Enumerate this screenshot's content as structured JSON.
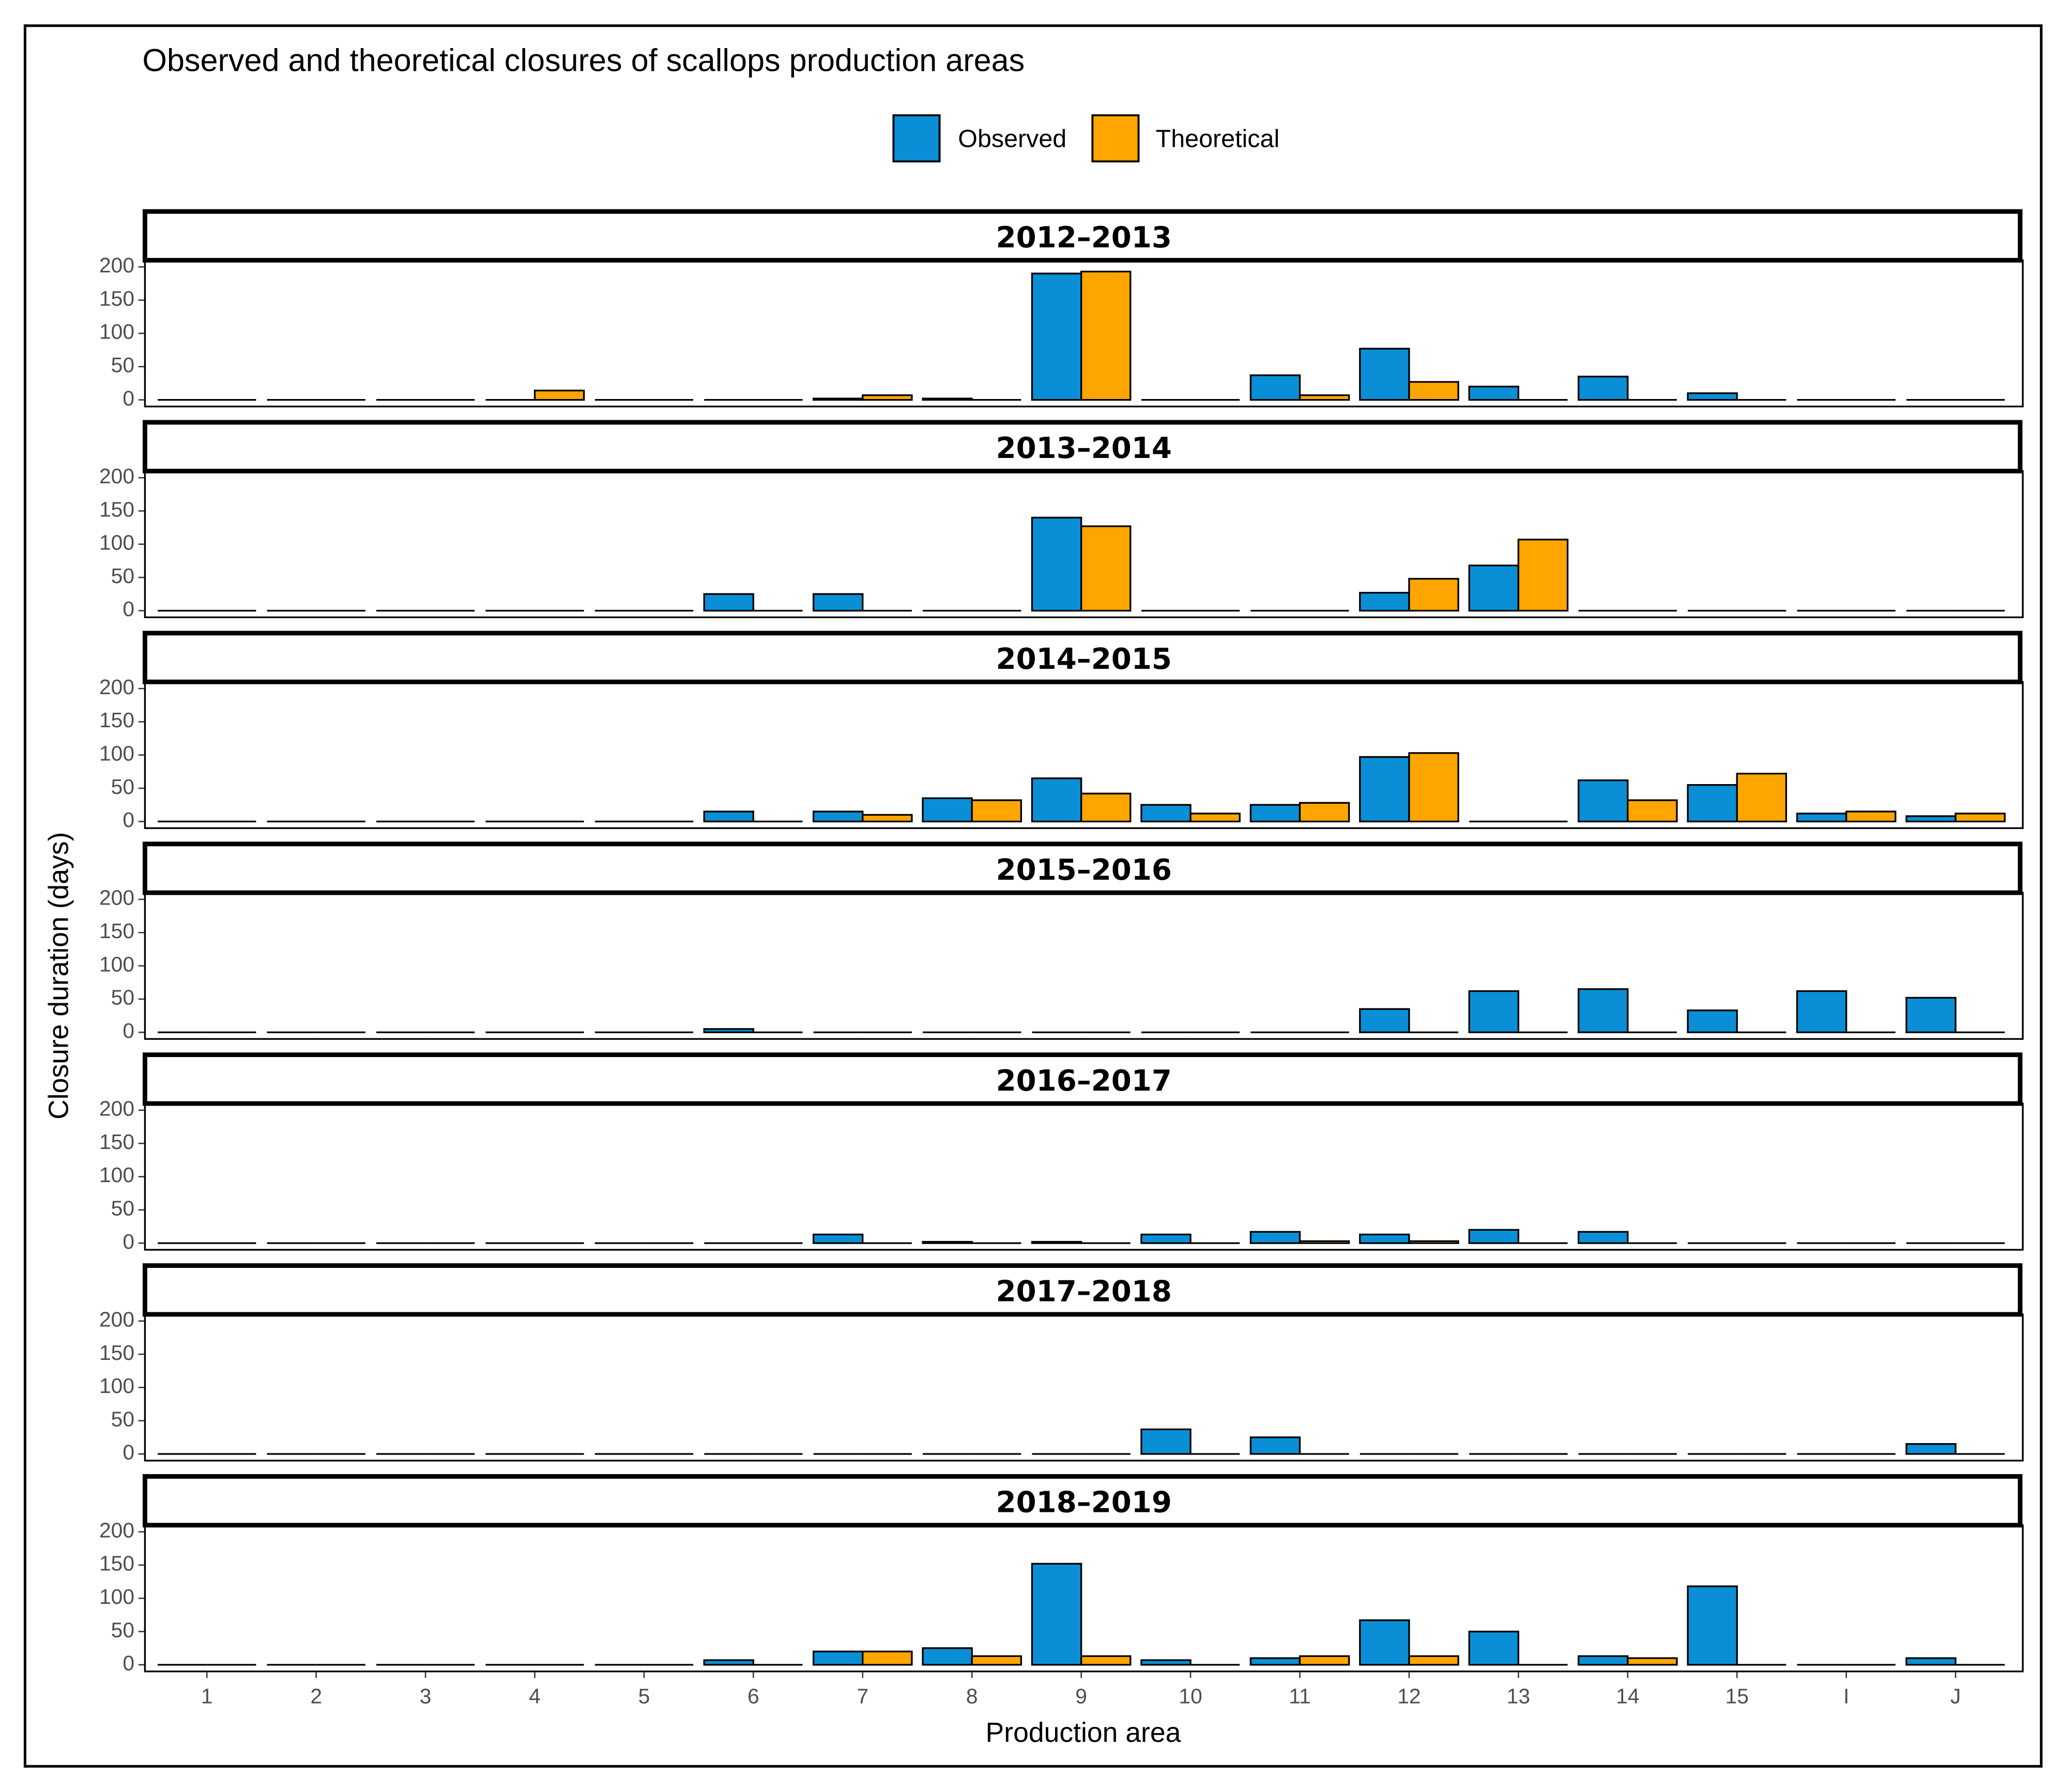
{
  "chart_data": {
    "type": "bar",
    "title": "Observed and theoretical closures of scallops production areas",
    "xlabel": "Production area",
    "ylabel": "Closure duration (days)",
    "categories": [
      "1",
      "2",
      "3",
      "4",
      "5",
      "6",
      "7",
      "8",
      "9",
      "10",
      "11",
      "12",
      "13",
      "14",
      "15",
      "I",
      "J"
    ],
    "series": [
      {
        "name": "Observed",
        "color": "#0a8fd6"
      },
      {
        "name": "Theoretical",
        "color": "#ffa500"
      }
    ],
    "legend": "top",
    "ylim": [
      -10,
      210
    ],
    "yticks": [
      0,
      50,
      100,
      150,
      200
    ],
    "panels": [
      {
        "title": "2012–2013",
        "series": [
          {
            "values": [
              0,
              0,
              0,
              0,
              0,
              0,
              2,
              2,
              190,
              0,
              37,
              77,
              20,
              35,
              10,
              0,
              0
            ]
          },
          {
            "values": [
              0,
              0,
              0,
              14,
              0,
              0,
              7,
              0,
              193,
              0,
              7,
              27,
              0,
              0,
              0,
              0,
              0
            ]
          }
        ]
      },
      {
        "title": "2013–2014",
        "series": [
          {
            "values": [
              0,
              0,
              0,
              0,
              0,
              25,
              25,
              0,
              140,
              0,
              0,
              27,
              68,
              0,
              0,
              0,
              0
            ]
          },
          {
            "values": [
              0,
              0,
              0,
              0,
              0,
              0,
              0,
              0,
              127,
              0,
              0,
              48,
              107,
              0,
              0,
              0,
              0
            ]
          }
        ]
      },
      {
        "title": "2014–2015",
        "series": [
          {
            "values": [
              0,
              0,
              0,
              0,
              0,
              15,
              15,
              35,
              65,
              25,
              25,
              97,
              0,
              62,
              55,
              12,
              8
            ]
          },
          {
            "values": [
              0,
              0,
              0,
              0,
              0,
              0,
              10,
              32,
              42,
              12,
              28,
              103,
              0,
              32,
              72,
              15,
              12
            ]
          }
        ]
      },
      {
        "title": "2015–2016",
        "series": [
          {
            "values": [
              0,
              0,
              0,
              0,
              0,
              5,
              0,
              0,
              0,
              0,
              0,
              35,
              62,
              65,
              33,
              62,
              52
            ]
          },
          {
            "values": [
              0,
              0,
              0,
              0,
              0,
              0,
              0,
              0,
              0,
              0,
              0,
              0,
              0,
              0,
              0,
              0,
              0
            ]
          }
        ]
      },
      {
        "title": "2016–2017",
        "series": [
          {
            "values": [
              0,
              0,
              0,
              0,
              0,
              0,
              13,
              2,
              2,
              13,
              17,
              13,
              20,
              17,
              0,
              0,
              0
            ]
          },
          {
            "values": [
              0,
              0,
              0,
              0,
              0,
              0,
              0,
              0,
              0,
              0,
              3,
              3,
              0,
              0,
              0,
              0,
              0
            ]
          }
        ]
      },
      {
        "title": "2017–2018",
        "series": [
          {
            "values": [
              0,
              0,
              0,
              0,
              0,
              0,
              0,
              0,
              0,
              37,
              25,
              0,
              0,
              0,
              0,
              0,
              15
            ]
          },
          {
            "values": [
              0,
              0,
              0,
              0,
              0,
              0,
              0,
              0,
              0,
              0,
              0,
              0,
              0,
              0,
              0,
              0,
              0
            ]
          }
        ]
      },
      {
        "title": "2018–2019",
        "series": [
          {
            "values": [
              0,
              0,
              0,
              0,
              0,
              7,
              20,
              25,
              152,
              7,
              10,
              67,
              50,
              13,
              118,
              0,
              10
            ]
          },
          {
            "values": [
              0,
              0,
              0,
              0,
              0,
              0,
              20,
              13,
              13,
              0,
              13,
              13,
              0,
              10,
              0,
              0,
              0
            ]
          }
        ]
      }
    ]
  }
}
